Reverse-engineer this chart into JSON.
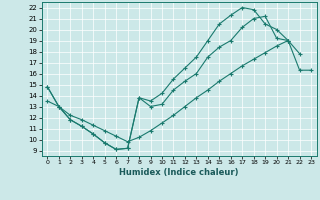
{
  "xlabel": "Humidex (Indice chaleur)",
  "xlim": [
    -0.5,
    23.5
  ],
  "ylim": [
    8.5,
    22.5
  ],
  "xticks": [
    0,
    1,
    2,
    3,
    4,
    5,
    6,
    7,
    8,
    9,
    10,
    11,
    12,
    13,
    14,
    15,
    16,
    17,
    18,
    19,
    20,
    21,
    22,
    23
  ],
  "yticks": [
    9,
    10,
    11,
    12,
    13,
    14,
    15,
    16,
    17,
    18,
    19,
    20,
    21,
    22
  ],
  "bg_color": "#cce8e8",
  "line_color": "#1a7a6e",
  "grid_color": "#ffffff",
  "line1_x": [
    0,
    1,
    2,
    3,
    4,
    5,
    6,
    7,
    8,
    9,
    10,
    11,
    12,
    13,
    14,
    15,
    16,
    17,
    18,
    19,
    20,
    21,
    22
  ],
  "line1_y": [
    14.8,
    13.0,
    11.8,
    11.2,
    10.5,
    9.7,
    9.1,
    9.2,
    13.8,
    13.0,
    13.2,
    14.5,
    15.3,
    16.0,
    17.5,
    18.4,
    19.0,
    20.2,
    21.0,
    21.2,
    19.2,
    19.0,
    17.8
  ],
  "line2_x": [
    0,
    1,
    2,
    3,
    4,
    5,
    6,
    7,
    8,
    9,
    10,
    11,
    12,
    13,
    14,
    15,
    16,
    17,
    18,
    19,
    20,
    21
  ],
  "line2_y": [
    14.8,
    13.0,
    11.8,
    11.2,
    10.5,
    9.7,
    9.1,
    9.2,
    13.8,
    13.5,
    14.2,
    15.5,
    16.5,
    17.5,
    19.0,
    20.5,
    21.3,
    22.0,
    21.8,
    20.5,
    20.0,
    19.0
  ],
  "line3_x": [
    0,
    1,
    2,
    3,
    4,
    5,
    6,
    7,
    8,
    9,
    10,
    11,
    12,
    13,
    14,
    15,
    16,
    17,
    18,
    19,
    20,
    21,
    22,
    23
  ],
  "line3_y": [
    13.5,
    13.0,
    12.2,
    11.8,
    11.3,
    10.8,
    10.3,
    9.8,
    10.2,
    10.8,
    11.5,
    12.2,
    13.0,
    13.8,
    14.5,
    15.3,
    16.0,
    16.7,
    17.3,
    17.9,
    18.5,
    19.0,
    16.3,
    16.3
  ]
}
